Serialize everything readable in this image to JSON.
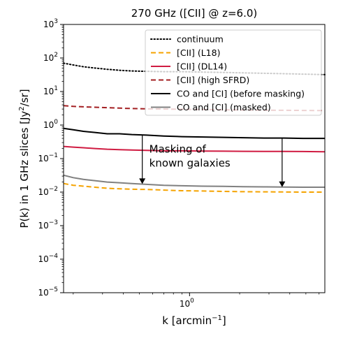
{
  "chart_data": {
    "type": "line",
    "title": "270 GHz ([CII] @ z=6.0)",
    "xlabel": "k [arcmin",
    "xlabel_sup": "−1",
    "xlabel_end": "]",
    "ylabel": "P(k) in 1 GHz slices [Jy",
    "ylabel_sup": "2",
    "ylabel_end": "/sr]",
    "xscale": "log",
    "yscale": "log",
    "xlim": [
      0.175,
      6.5
    ],
    "ylim": [
      1e-05,
      1000
    ],
    "x_ticks": [
      {
        "value": 1.0,
        "label": "10",
        "sup": "0"
      }
    ],
    "y_ticks": [
      {
        "value": 1e-05,
        "label": "10",
        "sup": "−5"
      },
      {
        "value": 0.0001,
        "label": "10",
        "sup": "−4"
      },
      {
        "value": 0.001,
        "label": "10",
        "sup": "−3"
      },
      {
        "value": 0.01,
        "label": "10",
        "sup": "−2"
      },
      {
        "value": 0.1,
        "label": "10",
        "sup": "−1"
      },
      {
        "value": 1,
        "label": "10",
        "sup": "0"
      },
      {
        "value": 10,
        "label": "10",
        "sup": "1"
      },
      {
        "value": 100,
        "label": "10",
        "sup": "2"
      },
      {
        "value": 1000,
        "label": "10",
        "sup": "3"
      }
    ],
    "legend_position": "top-right",
    "series": [
      {
        "name": "continuum",
        "color": "#000000",
        "style": "dotted",
        "x": [
          0.175,
          0.2,
          0.23,
          0.27,
          0.32,
          0.38,
          0.45,
          0.55,
          0.7,
          0.9,
          1.2,
          1.6,
          2.1,
          2.8,
          3.7,
          4.8,
          6.5
        ],
        "y": [
          70,
          62,
          55,
          50,
          46,
          43,
          41,
          40,
          39,
          39,
          38,
          37,
          36,
          35,
          34,
          33,
          32
        ]
      },
      {
        "name": "[CII] (L18)",
        "color": "#f5a300",
        "style": "dashed",
        "x": [
          0.175,
          0.2,
          0.23,
          0.27,
          0.32,
          0.38,
          0.45,
          0.55,
          0.7,
          0.9,
          1.2,
          1.6,
          2.1,
          2.8,
          3.7,
          4.8,
          6.5
        ],
        "y": [
          0.018,
          0.016,
          0.015,
          0.014,
          0.013,
          0.0125,
          0.0122,
          0.012,
          0.0115,
          0.011,
          0.0108,
          0.0105,
          0.0103,
          0.0102,
          0.0101,
          0.01,
          0.01
        ]
      },
      {
        "name": "[CII] (DL14)",
        "color": "#d01c42",
        "style": "solid",
        "x": [
          0.175,
          0.2,
          0.23,
          0.27,
          0.32,
          0.38,
          0.45,
          0.55,
          0.7,
          0.9,
          1.2,
          1.6,
          2.1,
          2.8,
          3.7,
          4.8,
          6.5
        ],
        "y": [
          0.23,
          0.22,
          0.21,
          0.2,
          0.19,
          0.185,
          0.18,
          0.175,
          0.17,
          0.17,
          0.168,
          0.166,
          0.165,
          0.164,
          0.163,
          0.162,
          0.16
        ]
      },
      {
        "name": "[CII] (high SFRD)",
        "color": "#a31f22",
        "style": "dashed",
        "x": [
          0.175,
          0.2,
          0.23,
          0.27,
          0.32,
          0.38,
          0.45,
          0.55,
          0.7,
          0.9,
          1.2,
          1.6,
          2.1,
          2.8,
          3.7,
          4.8,
          6.5
        ],
        "y": [
          3.8,
          3.6,
          3.5,
          3.4,
          3.3,
          3.2,
          3.1,
          3.05,
          3.0,
          2.95,
          2.9,
          2.85,
          2.8,
          2.78,
          2.75,
          2.72,
          2.7
        ]
      },
      {
        "name": "CO and [CI] (before masking)",
        "color": "#000000",
        "style": "solid",
        "x": [
          0.175,
          0.2,
          0.23,
          0.27,
          0.32,
          0.38,
          0.45,
          0.55,
          0.7,
          0.9,
          1.2,
          1.6,
          2.1,
          2.8,
          3.7,
          4.8,
          6.5
        ],
        "y": [
          0.8,
          0.72,
          0.65,
          0.6,
          0.55,
          0.55,
          0.52,
          0.5,
          0.47,
          0.45,
          0.44,
          0.43,
          0.42,
          0.41,
          0.41,
          0.4,
          0.4
        ]
      },
      {
        "name": "CO and [CI] (masked)",
        "color": "#808080",
        "style": "solid",
        "x": [
          0.175,
          0.2,
          0.23,
          0.27,
          0.32,
          0.38,
          0.45,
          0.55,
          0.7,
          0.9,
          1.2,
          1.6,
          2.1,
          2.8,
          3.7,
          4.8,
          6.5
        ],
        "y": [
          0.032,
          0.027,
          0.024,
          0.022,
          0.02,
          0.019,
          0.018,
          0.017,
          0.016,
          0.0155,
          0.015,
          0.0148,
          0.0145,
          0.0143,
          0.0142,
          0.014,
          0.014
        ]
      }
    ],
    "annotation": {
      "lines": [
        "Masking of",
        "known galaxies"
      ],
      "arrows": [
        {
          "x": 0.52,
          "y_from": 0.5,
          "y_to": 0.0175
        },
        {
          "x": 3.6,
          "y_from": 0.41,
          "y_to": 0.0142
        }
      ],
      "text_at": {
        "x": 0.52,
        "y": 0.15
      }
    }
  }
}
